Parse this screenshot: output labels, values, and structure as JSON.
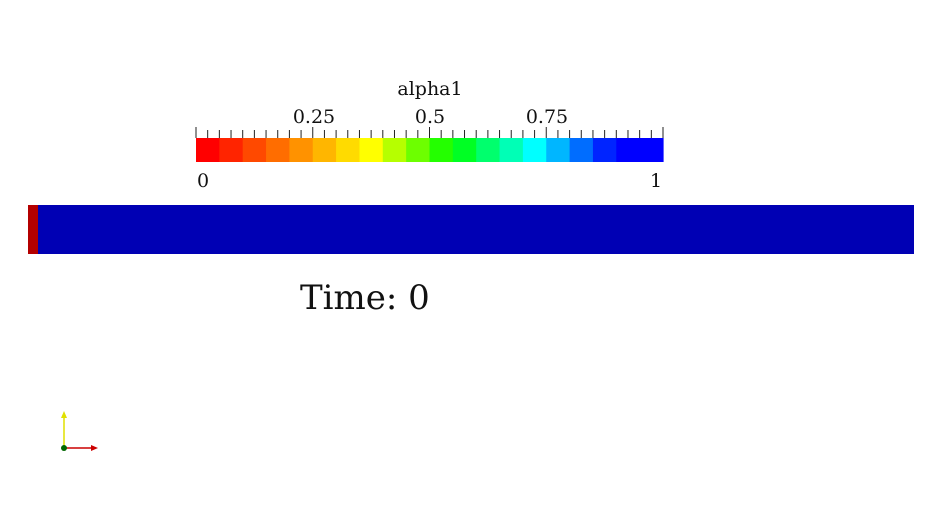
{
  "scalar_bar": {
    "title": "alpha1",
    "tick_labels": [
      "0.25",
      "0.5",
      "0.75"
    ],
    "range_min": "0",
    "range_max": "1",
    "num_color_bands": 20,
    "color_scheme": "rainbow red-to-blue",
    "colors": [
      "#ff0000",
      "#ff2400",
      "#ff4900",
      "#ff6d00",
      "#ff9200",
      "#ffb600",
      "#ffdb00",
      "#ffff00",
      "#b6ff00",
      "#6dff00",
      "#24ff00",
      "#00ff24",
      "#00ff6d",
      "#00ffb6",
      "#00ffff",
      "#00b6ff",
      "#006dff",
      "#0024ff",
      "#0000ff",
      "#0000ff"
    ]
  },
  "domain": {
    "fill_color": "#0000b4",
    "inlet_color": "#b40000"
  },
  "annotation": {
    "time_text": "Time: 0"
  },
  "axes": {
    "x_color": "#cc0000",
    "y_color": "#e0e000",
    "origin_color": "#006600"
  }
}
